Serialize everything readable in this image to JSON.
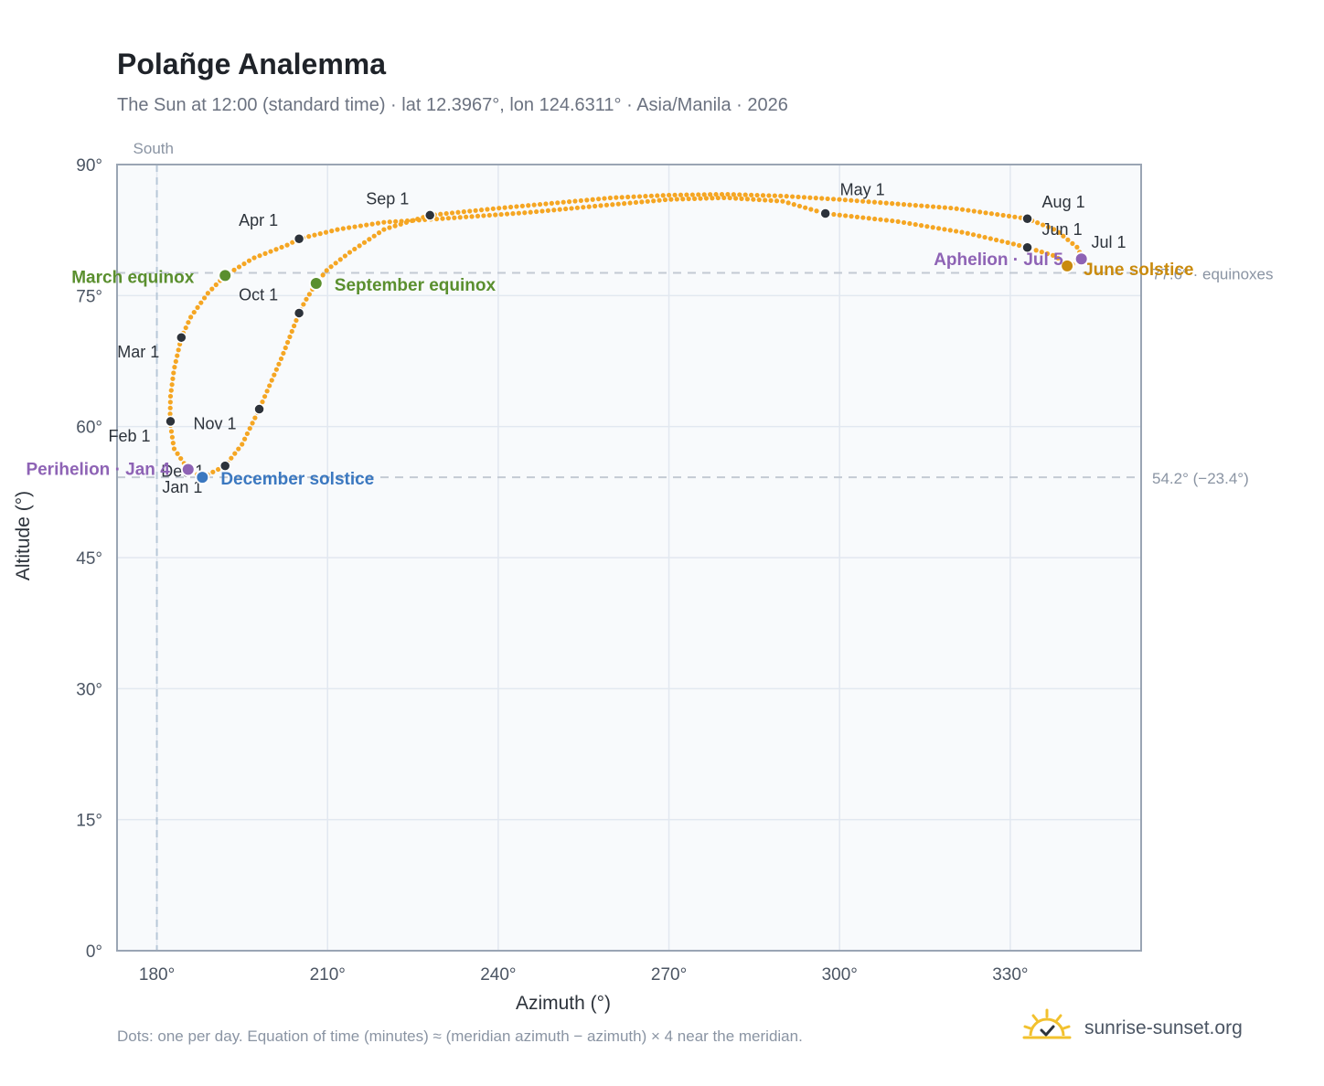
{
  "title": "Polañge Analemma",
  "subtitle": "The Sun at 12:00 (standard time) · lat 12.3967°, lon 124.6311° · Asia/Manila · 2026",
  "footnote": "Dots: one per day. Equation of time (minutes) ≈ (meridian azimuth − azimuth) × 4 near the meridian.",
  "brand": {
    "name": "sunrise-sunset.org",
    "logo_icon": "sun-check-icon"
  },
  "colors": {
    "curve": "#f5a623",
    "month_marker": "#2d333b",
    "equinox": "#5a8f2e",
    "june_solstice": "#c98a0d",
    "december_solstice": "#3b78c0",
    "perihelion_aphelion": "#8e63b5",
    "plot_bg": "#f8fafc",
    "grid": "#e2e8f0",
    "axis": "#9aa5b4",
    "reference_line": "#c3cad3"
  },
  "chart_data": {
    "type": "scatter",
    "title": "Polañge Analemma",
    "xlabel": "Azimuth (°)",
    "ylabel": "Altitude (°)",
    "xlim": [
      173,
      353
    ],
    "ylim": [
      0,
      90
    ],
    "x_ticks": [
      180,
      210,
      240,
      270,
      300,
      330
    ],
    "x_tick_labels": [
      "180°",
      "210°",
      "240°",
      "270°",
      "300°",
      "330°"
    ],
    "y_ticks": [
      0,
      15,
      30,
      45,
      60,
      75,
      90
    ],
    "y_tick_labels": [
      "0°",
      "15°",
      "30°",
      "45°",
      "60°",
      "75°",
      "90°"
    ],
    "grid": true,
    "south_line": {
      "azimuth": 180,
      "label": "South"
    },
    "reference_lines": [
      {
        "altitude": 77.6,
        "label": "77.6° · equinoxes"
      },
      {
        "altitude": 54.2,
        "label": "54.2° (−23.4°)"
      }
    ],
    "series": [
      {
        "points": [
          [
            188.0,
            54.2
          ],
          [
            185.5,
            55.1
          ],
          [
            183.0,
            57.5
          ],
          [
            182.3,
            60.6
          ],
          [
            182.4,
            63.5
          ],
          [
            183.0,
            66.5
          ],
          [
            184.3,
            70.2
          ],
          [
            186.0,
            72.6
          ],
          [
            189.0,
            75.3
          ],
          [
            192.0,
            77.3
          ],
          [
            197.0,
            79.3
          ],
          [
            203.0,
            80.8
          ],
          [
            205.0,
            81.5
          ],
          [
            212.0,
            82.6
          ],
          [
            220.0,
            83.4
          ],
          [
            230.0,
            83.8
          ],
          [
            245.0,
            84.5
          ],
          [
            258.0,
            85.3
          ],
          [
            270.0,
            86.0
          ],
          [
            280.0,
            86.2
          ],
          [
            290.0,
            85.8
          ],
          [
            297.5,
            84.4
          ],
          [
            310.0,
            83.5
          ],
          [
            322.0,
            82.2
          ],
          [
            330.0,
            81.0
          ],
          [
            333.0,
            80.5
          ],
          [
            338.0,
            79.5
          ],
          [
            340.0,
            78.4
          ],
          [
            342.0,
            78.8
          ],
          [
            342.5,
            79.2
          ],
          [
            342.0,
            80.4
          ],
          [
            338.0,
            82.5
          ],
          [
            333.0,
            83.8
          ],
          [
            320.0,
            85.0
          ],
          [
            300.0,
            86.0
          ],
          [
            290.0,
            86.4
          ],
          [
            280.0,
            86.6
          ],
          [
            270.0,
            86.5
          ],
          [
            260.0,
            86.2
          ],
          [
            250.0,
            85.6
          ],
          [
            240.0,
            85.0
          ],
          [
            228.0,
            84.2
          ],
          [
            220.0,
            82.6
          ],
          [
            214.0,
            80.0
          ],
          [
            210.0,
            78.0
          ],
          [
            208.0,
            76.4
          ],
          [
            206.0,
            74.3
          ],
          [
            205.0,
            73.0
          ],
          [
            202.0,
            68.0
          ],
          [
            199.0,
            63.5
          ],
          [
            198.0,
            62.0
          ],
          [
            195.0,
            58.0
          ],
          [
            192.0,
            55.5
          ],
          [
            188.0,
            54.2
          ]
        ]
      }
    ],
    "month_markers": [
      {
        "label": "Jan 1",
        "azimuth": 188.0,
        "altitude": 54.3
      },
      {
        "label": "Feb 1",
        "azimuth": 182.4,
        "altitude": 60.6
      },
      {
        "label": "Mar 1",
        "azimuth": 184.3,
        "altitude": 70.2
      },
      {
        "label": "Apr 1",
        "azimuth": 205.0,
        "altitude": 81.5
      },
      {
        "label": "May 1",
        "azimuth": 297.5,
        "altitude": 84.4
      },
      {
        "label": "Jun 1",
        "azimuth": 333.0,
        "altitude": 80.5
      },
      {
        "label": "Jul 1",
        "azimuth": 342.0,
        "altitude": 79.2
      },
      {
        "label": "Aug 1",
        "azimuth": 333.0,
        "altitude": 83.8
      },
      {
        "label": "Sep 1",
        "azimuth": 228.0,
        "altitude": 84.2
      },
      {
        "label": "Oct 1",
        "azimuth": 205.0,
        "altitude": 73.0
      },
      {
        "label": "Nov 1",
        "azimuth": 198.0,
        "altitude": 62.0
      },
      {
        "label": "Dec 1",
        "azimuth": 192.0,
        "altitude": 55.5
      }
    ],
    "events": [
      {
        "label": "March equinox",
        "azimuth": 192.0,
        "altitude": 77.3,
        "color_key": "equinox"
      },
      {
        "label": "September equinox",
        "azimuth": 208.0,
        "altitude": 76.4,
        "color_key": "equinox"
      },
      {
        "label": "June solstice",
        "azimuth": 340.0,
        "altitude": 78.4,
        "color_key": "june_solstice"
      },
      {
        "label": "December solstice",
        "azimuth": 188.0,
        "altitude": 54.2,
        "color_key": "december_solstice"
      },
      {
        "label": "Perihelion · Jan 4",
        "azimuth": 185.5,
        "altitude": 55.1,
        "color_key": "perihelion_aphelion"
      },
      {
        "label": "Aphelion · Jul 5",
        "azimuth": 342.5,
        "altitude": 79.2,
        "color_key": "perihelion_aphelion"
      }
    ]
  }
}
